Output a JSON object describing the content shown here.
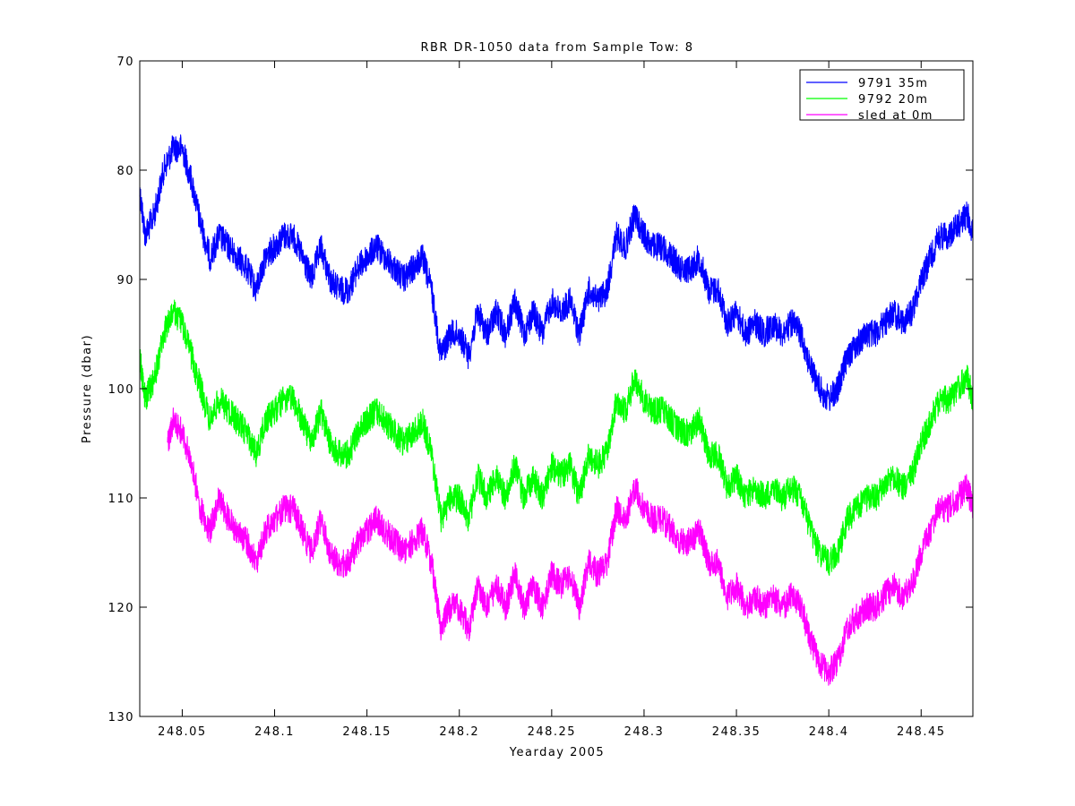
{
  "chart_data": {
    "type": "line",
    "title": "RBR DR-1050 data from Sample Tow: 8",
    "xlabel": "Yearday 2005",
    "ylabel": "Pressure (dbar)",
    "xlim": [
      248.027,
      248.478
    ],
    "ylim": [
      70,
      130
    ],
    "y_reversed": true,
    "x_ticks": [
      "248.05",
      "248.1",
      "248.15",
      "248.2",
      "248.25",
      "248.3",
      "248.35",
      "248.4",
      "248.45"
    ],
    "y_ticks": [
      "70",
      "80",
      "90",
      "100",
      "110",
      "120",
      "130"
    ],
    "grid": false,
    "legend_position": "top-right",
    "series": [
      {
        "name": "9791 35m",
        "color": "#0000ff",
        "x": [
          248.027,
          248.03,
          248.035,
          248.04,
          248.045,
          248.05,
          248.055,
          248.06,
          248.065,
          248.07,
          248.075,
          248.08,
          248.085,
          248.09,
          248.095,
          248.1,
          248.105,
          248.11,
          248.115,
          248.12,
          248.125,
          248.13,
          248.135,
          248.14,
          248.145,
          248.15,
          248.155,
          248.16,
          248.165,
          248.17,
          248.175,
          248.18,
          248.185,
          248.19,
          248.195,
          248.2,
          248.205,
          248.21,
          248.215,
          248.22,
          248.225,
          248.23,
          248.235,
          248.24,
          248.245,
          248.25,
          248.255,
          248.26,
          248.265,
          248.27,
          248.275,
          248.28,
          248.285,
          248.29,
          248.295,
          248.3,
          248.305,
          248.31,
          248.315,
          248.32,
          248.325,
          248.33,
          248.335,
          248.34,
          248.345,
          248.35,
          248.355,
          248.36,
          248.365,
          248.37,
          248.375,
          248.38,
          248.385,
          248.39,
          248.395,
          248.4,
          248.405,
          248.41,
          248.415,
          248.42,
          248.425,
          248.43,
          248.435,
          248.44,
          248.445,
          248.45,
          248.455,
          248.46,
          248.465,
          248.47,
          248.475,
          248.478
        ],
        "y": [
          82,
          86,
          84,
          80,
          78,
          78,
          81,
          85,
          88,
          86,
          87,
          88,
          89,
          91,
          88,
          87,
          86,
          86,
          88,
          90,
          87,
          90,
          91,
          91,
          89,
          88,
          87,
          88,
          89,
          90,
          89,
          88,
          91,
          97,
          95,
          95,
          97,
          93,
          95,
          93,
          95,
          92,
          95,
          93,
          95,
          92,
          93,
          92,
          95,
          91,
          92,
          91,
          86,
          87,
          84,
          86,
          87,
          87,
          88,
          89,
          89,
          88,
          91,
          91,
          94,
          93,
          95,
          94,
          95,
          94,
          95,
          94,
          95,
          98,
          100,
          101,
          100,
          97,
          96,
          95,
          95,
          94,
          93,
          94,
          93,
          90,
          88,
          86,
          86,
          85,
          84,
          86
        ]
      },
      {
        "name": "9792 20m",
        "color": "#00ff00",
        "x": [
          248.027,
          248.03,
          248.035,
          248.04,
          248.045,
          248.05,
          248.055,
          248.06,
          248.065,
          248.07,
          248.075,
          248.08,
          248.085,
          248.09,
          248.095,
          248.1,
          248.105,
          248.11,
          248.115,
          248.12,
          248.125,
          248.13,
          248.135,
          248.14,
          248.145,
          248.15,
          248.155,
          248.16,
          248.165,
          248.17,
          248.175,
          248.18,
          248.185,
          248.19,
          248.195,
          248.2,
          248.205,
          248.21,
          248.215,
          248.22,
          248.225,
          248.23,
          248.235,
          248.24,
          248.245,
          248.25,
          248.255,
          248.26,
          248.265,
          248.27,
          248.275,
          248.28,
          248.285,
          248.29,
          248.295,
          248.3,
          248.305,
          248.31,
          248.315,
          248.32,
          248.325,
          248.33,
          248.335,
          248.34,
          248.345,
          248.35,
          248.355,
          248.36,
          248.365,
          248.37,
          248.375,
          248.38,
          248.385,
          248.39,
          248.395,
          248.4,
          248.405,
          248.41,
          248.415,
          248.42,
          248.425,
          248.43,
          248.435,
          248.44,
          248.445,
          248.45,
          248.455,
          248.46,
          248.465,
          248.47,
          248.475,
          248.478
        ],
        "y": [
          97,
          101,
          99,
          95,
          93,
          94,
          97,
          100,
          103,
          101,
          102,
          103,
          104,
          106,
          103,
          102,
          101,
          101,
          103,
          105,
          102,
          105,
          106,
          106,
          104,
          103,
          102,
          103,
          104,
          105,
          104,
          103,
          106,
          112,
          110,
          110,
          112,
          108,
          110,
          108,
          110,
          107,
          110,
          108,
          110,
          107,
          108,
          107,
          110,
          106,
          107,
          106,
          101,
          102,
          99,
          101,
          102,
          102,
          103,
          104,
          104,
          103,
          106,
          106,
          109,
          108,
          110,
          109,
          110,
          109,
          110,
          109,
          110,
          113,
          115,
          116,
          115,
          112,
          111,
          110,
          110,
          109,
          108,
          109,
          108,
          105,
          103,
          101,
          101,
          100,
          99,
          101
        ]
      },
      {
        "name": "sled at 0m",
        "color": "#ff00ff",
        "x": [
          248.042,
          248.045,
          248.05,
          248.055,
          248.06,
          248.065,
          248.07,
          248.075,
          248.08,
          248.085,
          248.09,
          248.095,
          248.1,
          248.105,
          248.11,
          248.115,
          248.12,
          248.125,
          248.13,
          248.135,
          248.14,
          248.145,
          248.15,
          248.155,
          248.16,
          248.165,
          248.17,
          248.175,
          248.18,
          248.185,
          248.19,
          248.195,
          248.2,
          248.205,
          248.21,
          248.215,
          248.22,
          248.225,
          248.23,
          248.235,
          248.24,
          248.245,
          248.25,
          248.255,
          248.26,
          248.265,
          248.27,
          248.275,
          248.28,
          248.285,
          248.29,
          248.295,
          248.3,
          248.305,
          248.31,
          248.315,
          248.32,
          248.325,
          248.33,
          248.335,
          248.34,
          248.345,
          248.35,
          248.355,
          248.36,
          248.365,
          248.37,
          248.375,
          248.38,
          248.385,
          248.39,
          248.395,
          248.4,
          248.405,
          248.41,
          248.415,
          248.42,
          248.425,
          248.43,
          248.435,
          248.44,
          248.445,
          248.45,
          248.455,
          248.46,
          248.465,
          248.47,
          248.475,
          248.478
        ],
        "y": [
          105,
          103,
          104,
          107,
          111,
          113,
          110,
          112,
          113,
          114,
          116,
          113,
          112,
          111,
          111,
          113,
          115,
          112,
          115,
          116,
          116,
          114,
          113,
          112,
          113,
          114,
          115,
          114,
          113,
          116,
          122,
          120,
          120,
          122,
          118,
          120,
          118,
          120,
          117,
          120,
          118,
          120,
          117,
          118,
          117,
          120,
          116,
          117,
          116,
          111,
          112,
          109,
          111,
          112,
          112,
          113,
          114,
          114,
          113,
          116,
          116,
          119,
          118,
          120,
          119,
          120,
          119,
          120,
          119,
          120,
          123,
          125,
          126,
          125,
          122,
          121,
          120,
          120,
          119,
          118,
          119,
          118,
          115,
          113,
          111,
          111,
          110,
          109,
          111
        ]
      }
    ]
  }
}
